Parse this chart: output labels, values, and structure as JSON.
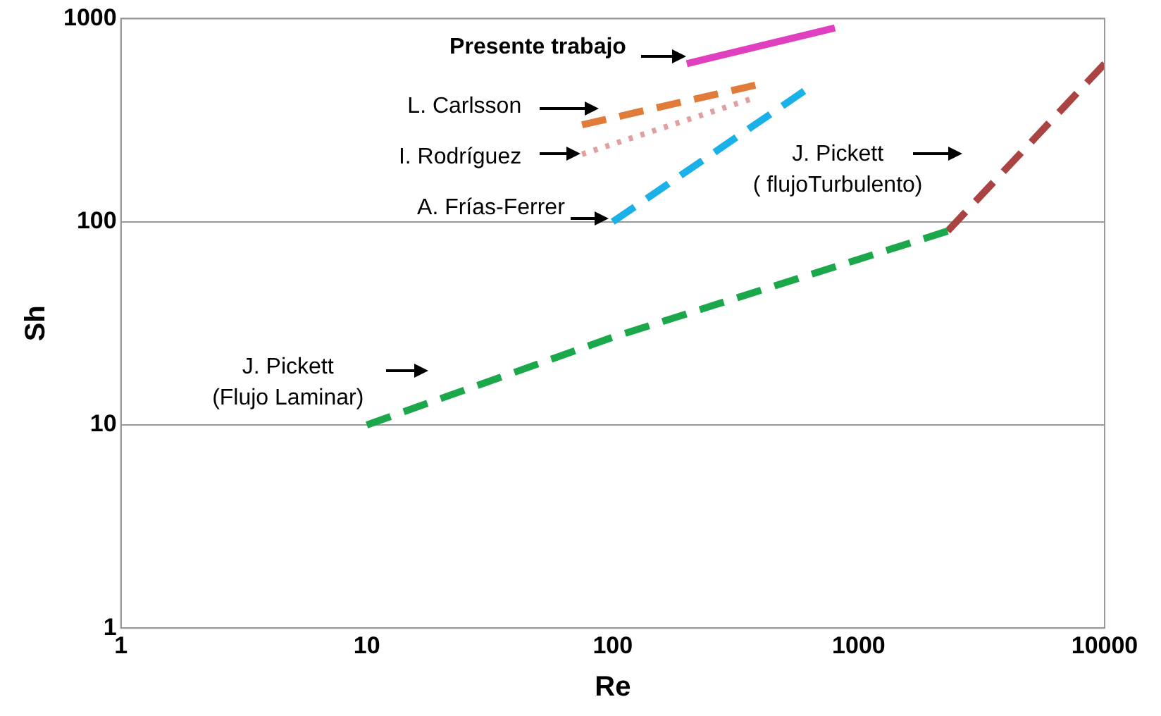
{
  "chart_data": {
    "type": "line",
    "xlabel": "Re",
    "ylabel": "Sh",
    "log": "xy",
    "xlim": [
      1,
      10000
    ],
    "ylim": [
      1,
      1000
    ],
    "xticks": [
      1,
      10,
      100,
      1000,
      10000
    ],
    "yticks": [
      1,
      10,
      100,
      1000
    ],
    "grid": "y",
    "legend": false,
    "marker": "none",
    "series": [
      {
        "name": "Presente trabajo",
        "color": "#e040c0",
        "line_style": "solid",
        "x": [
          200,
          800
        ],
        "values": [
          600,
          900
        ]
      },
      {
        "name": "L. Carlsson",
        "color": "#e07b39",
        "line_style": "dashed",
        "x": [
          75,
          380
        ],
        "values": [
          300,
          470
        ]
      },
      {
        "name": "I. Rodríguez",
        "color": "#e0a0a0",
        "line_style": "dotted",
        "x": [
          75,
          360
        ],
        "values": [
          215,
          400
        ]
      },
      {
        "name": "A. Frías-Ferrer",
        "color": "#1ab0e8",
        "line_style": "dashed",
        "x": [
          100,
          600
        ],
        "values": [
          100,
          440
        ]
      },
      {
        "name": "J. Pickett (Flujo Laminar)",
        "color": "#1aa84a",
        "line_style": "dashed",
        "x": [
          10,
          100,
          2300
        ],
        "values": [
          10,
          27,
          90
        ]
      },
      {
        "name": "J. Pickett ( flujoTurbulento)",
        "color": "#a94442",
        "line_style": "dashed",
        "x": [
          2300,
          10000
        ],
        "values": [
          90,
          600
        ]
      }
    ]
  }
}
